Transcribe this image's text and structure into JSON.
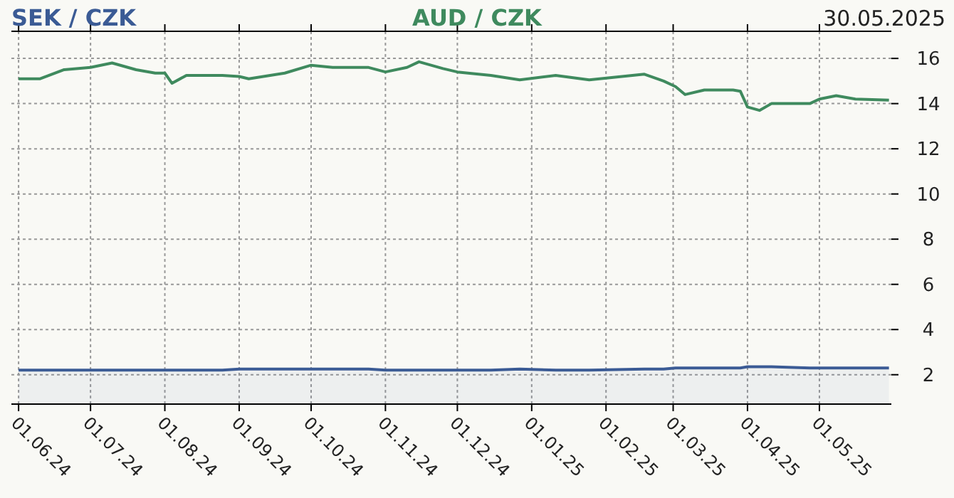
{
  "chart_data": {
    "type": "line",
    "annotations": [
      "30.05.2025"
    ],
    "x": [
      "2024-06-01",
      "2024-06-10",
      "2024-06-20",
      "2024-07-01",
      "2024-07-10",
      "2024-07-20",
      "2024-07-28",
      "2024-08-01",
      "2024-08-04",
      "2024-08-10",
      "2024-08-25",
      "2024-09-01",
      "2024-09-05",
      "2024-09-20",
      "2024-10-01",
      "2024-10-10",
      "2024-10-25",
      "2024-11-01",
      "2024-11-10",
      "2024-11-15",
      "2024-11-25",
      "2024-12-01",
      "2024-12-15",
      "2024-12-27",
      "2025-01-11",
      "2025-01-25",
      "2025-02-17",
      "2025-02-25",
      "2025-03-02",
      "2025-03-06",
      "2025-03-14",
      "2025-03-26",
      "2025-03-29",
      "2025-04-01",
      "2025-04-06",
      "2025-04-11",
      "2025-04-27",
      "2025-05-01",
      "2025-05-08",
      "2025-05-16",
      "2025-05-30"
    ],
    "series": [
      {
        "name": "SEK / CZK",
        "type": "area",
        "color": "#3b5b95",
        "values": [
          2.2,
          2.2,
          2.2,
          2.2,
          2.2,
          2.2,
          2.2,
          2.2,
          2.2,
          2.2,
          2.2,
          2.25,
          2.25,
          2.25,
          2.25,
          2.25,
          2.25,
          2.2,
          2.2,
          2.2,
          2.2,
          2.2,
          2.2,
          2.25,
          2.2,
          2.2,
          2.25,
          2.25,
          2.3,
          2.3,
          2.3,
          2.3,
          2.3,
          2.35,
          2.35,
          2.35,
          2.3,
          2.3,
          2.3,
          2.3,
          2.3
        ]
      },
      {
        "name": "AUD / CZK",
        "color": "#3f8a5e",
        "values": [
          15.1,
          15.1,
          15.5,
          15.6,
          15.8,
          15.5,
          15.35,
          15.35,
          14.9,
          15.25,
          15.25,
          15.2,
          15.1,
          15.35,
          15.7,
          15.6,
          15.6,
          15.4,
          15.6,
          15.85,
          15.55,
          15.4,
          15.25,
          15.05,
          15.25,
          15.05,
          15.3,
          15.0,
          14.75,
          14.4,
          14.6,
          14.6,
          14.55,
          13.85,
          13.7,
          14.0,
          14.0,
          14.2,
          14.35,
          14.2,
          14.15
        ]
      }
    ],
    "xlim": [
      "2024-05-29",
      "2025-05-31"
    ],
    "xticks": [
      {
        "value": "2024-06-01",
        "label": "01.06.24"
      },
      {
        "value": "2024-07-01",
        "label": "01.07.24"
      },
      {
        "value": "2024-08-01",
        "label": "01.08.24"
      },
      {
        "value": "2024-09-01",
        "label": "01.09.24"
      },
      {
        "value": "2024-10-01",
        "label": "01.10.24"
      },
      {
        "value": "2024-11-01",
        "label": "01.11.24"
      },
      {
        "value": "2024-12-01",
        "label": "01.12.24"
      },
      {
        "value": "2025-01-01",
        "label": "01.01.25"
      },
      {
        "value": "2025-02-01",
        "label": "01.02.25"
      },
      {
        "value": "2025-03-01",
        "label": "01.03.25"
      },
      {
        "value": "2025-04-01",
        "label": "01.04.25"
      },
      {
        "value": "2025-05-01",
        "label": "01.05.25"
      }
    ],
    "ylim": [
      0.7,
      17.2
    ],
    "yticks": [
      2,
      4,
      6,
      8,
      10,
      12,
      14,
      16
    ],
    "grid": true,
    "legend": "top"
  }
}
